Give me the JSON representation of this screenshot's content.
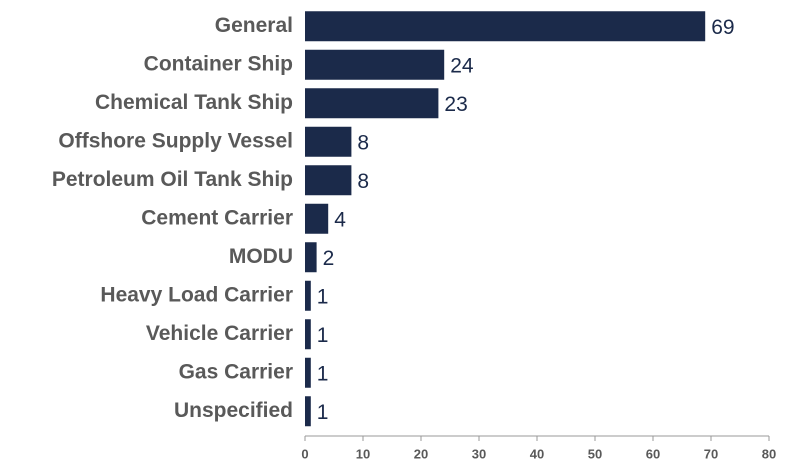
{
  "chart_data": {
    "type": "barh",
    "categories": [
      "General",
      "Container Ship",
      "Chemical Tank Ship",
      "Offshore Supply Vessel",
      "Petroleum Oil Tank Ship",
      "Cement Carrier",
      "MODU",
      "Heavy Load Carrier",
      "Vehicle Carrier",
      "Gas Carrier",
      "Unspecified"
    ],
    "values": [
      69,
      24,
      23,
      8,
      8,
      4,
      2,
      1,
      1,
      1,
      1
    ],
    "color": "#1b2a4a",
    "xlim": [
      0,
      80
    ],
    "xticks": [
      0,
      10,
      20,
      30,
      40,
      50,
      60,
      70,
      80
    ],
    "grid": false
  }
}
